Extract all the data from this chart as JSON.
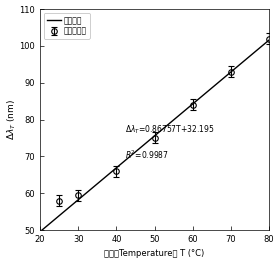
{
  "slope": 0.86757,
  "intercept": 32.195,
  "r_squared": 0.9987,
  "data_x": [
    25,
    30,
    40,
    50,
    60,
    70,
    80
  ],
  "data_y": [
    58.0,
    59.5,
    66.0,
    75.0,
    84.0,
    93.0,
    102.0
  ],
  "error_bars": [
    1.5,
    1.5,
    1.5,
    1.5,
    1.5,
    1.5,
    1.5
  ],
  "xlim": [
    20,
    80
  ],
  "ylim": [
    50,
    110
  ],
  "xticks": [
    20,
    30,
    40,
    50,
    60,
    70,
    80
  ],
  "yticks": [
    50,
    60,
    70,
    80,
    90,
    100,
    110
  ],
  "xlabel_cn": "温度（Temperature） T (°C)",
  "ylabel_math": "$\\Delta\\lambda_T$ (nm)",
  "legend_fit_cn": "拟合曲线",
  "legend_data_cn": "测量数据点",
  "eq_text": "$\\Delta\\lambda_T$=0.86757T+32.195",
  "r2_text": "$R^2$=0.9987",
  "line_color": "#000000",
  "marker_color": "#000000",
  "background_color": "#ffffff",
  "figsize": [
    2.8,
    2.64
  ],
  "dpi": 100
}
